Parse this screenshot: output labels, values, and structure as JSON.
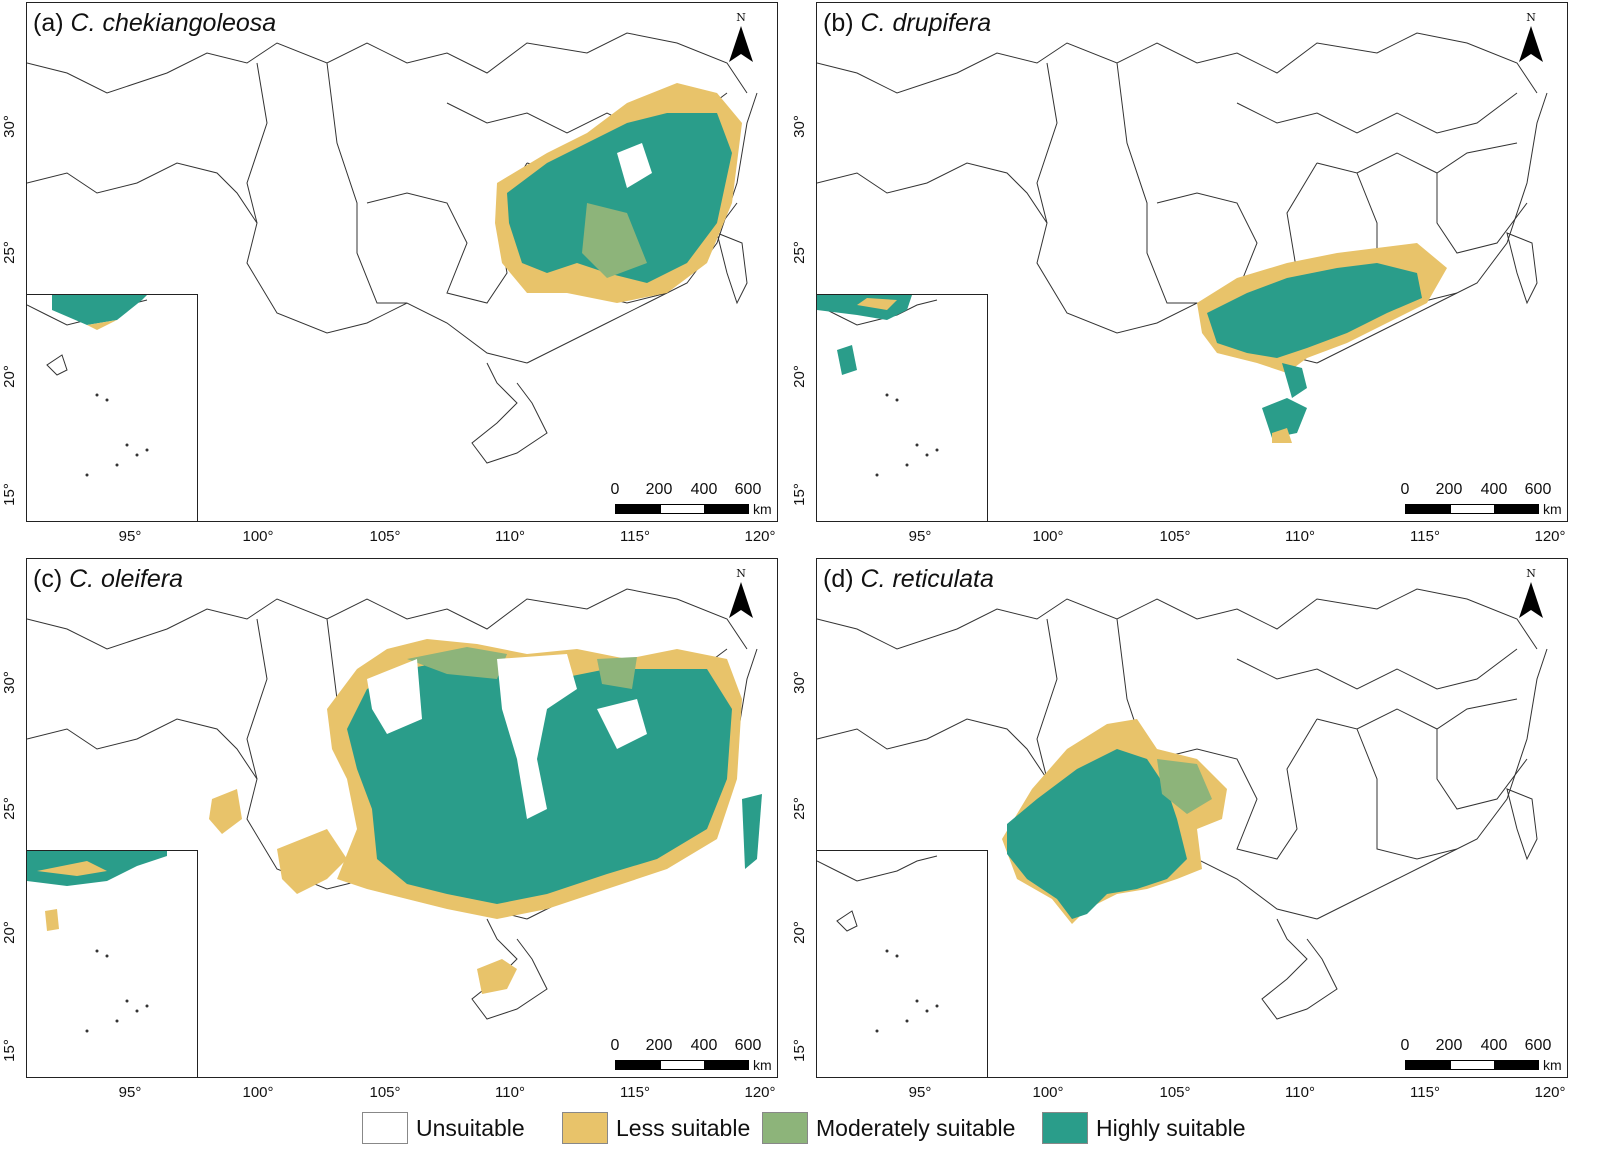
{
  "colors": {
    "unsuitable": "#ffffff",
    "less_suitable": "#e8c36a",
    "moderately_suitable": "#8db47a",
    "highly_suitable": "#2a9d8a",
    "boundary": "#333333"
  },
  "axes": {
    "x_ticks": [
      "95°",
      "100°",
      "105°",
      "110°",
      "115°",
      "120°"
    ],
    "y_ticks": [
      "30°",
      "25°",
      "20°",
      "15°"
    ]
  },
  "north_arrow": {
    "label": "N"
  },
  "scale_bar": {
    "ticks": [
      "0",
      "200",
      "400",
      "600"
    ],
    "unit": "km"
  },
  "panels": [
    {
      "letter": "(a)",
      "species": "C. chekiangoleosa"
    },
    {
      "letter": "(b)",
      "species": "C. drupifera"
    },
    {
      "letter": "(c)",
      "species": "C. oleifera"
    },
    {
      "letter": "(d)",
      "species": "C. reticulata"
    }
  ],
  "legend": [
    {
      "label": "Unsuitable",
      "class": "unsuitable"
    },
    {
      "label": "Less suitable",
      "class": "less_suitable"
    },
    {
      "label": "Moderately suitable",
      "class": "moderately_suitable"
    },
    {
      "label": "Highly suitable",
      "class": "highly_suitable"
    }
  ]
}
